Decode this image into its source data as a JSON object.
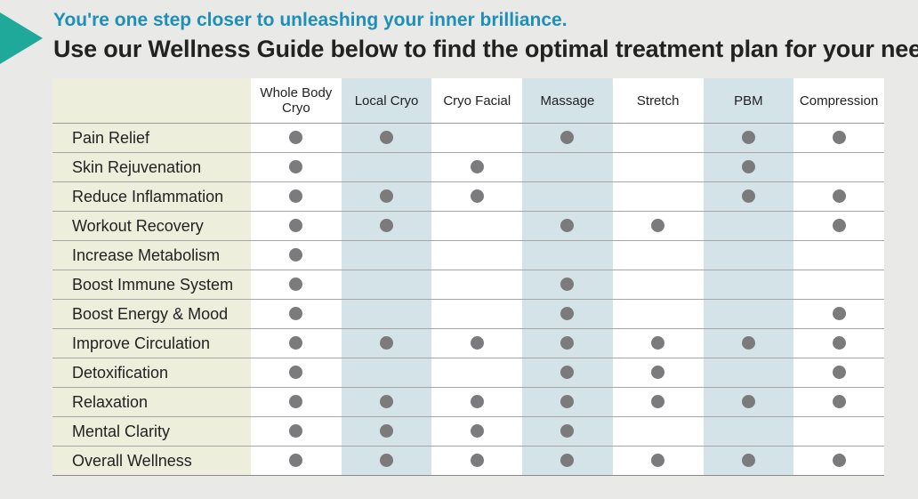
{
  "header": {
    "subtitle": "You're one step closer to unleashing your inner brilliance.",
    "title": "Use our Wellness Guide below to find the optimal treatment plan for your needs."
  },
  "colors": {
    "accent_arrow": "#1fa99a",
    "subtitle_text": "#1d8fb8",
    "label_column_bg": "#eeeedd",
    "alt_column_bg": "#d3e3e8",
    "dot": "#7b7b7d"
  },
  "table": {
    "columns": [
      {
        "label": "Whole Body Cryo",
        "shade": "white"
      },
      {
        "label": "Local Cryo",
        "shade": "blue"
      },
      {
        "label": "Cryo Facial",
        "shade": "white"
      },
      {
        "label": "Massage",
        "shade": "blue"
      },
      {
        "label": "Stretch",
        "shade": "white"
      },
      {
        "label": "PBM",
        "shade": "blue"
      },
      {
        "label": "Compression",
        "shade": "white"
      }
    ],
    "rows": [
      {
        "label": "Pain Relief",
        "marks": [
          true,
          true,
          false,
          true,
          false,
          true,
          true
        ]
      },
      {
        "label": "Skin Rejuvenation",
        "marks": [
          true,
          false,
          true,
          false,
          false,
          true,
          false
        ]
      },
      {
        "label": "Reduce Inflammation",
        "marks": [
          true,
          true,
          true,
          false,
          false,
          true,
          true
        ]
      },
      {
        "label": "Workout Recovery",
        "marks": [
          true,
          true,
          false,
          true,
          true,
          false,
          true
        ]
      },
      {
        "label": "Increase Metabolism",
        "marks": [
          true,
          false,
          false,
          false,
          false,
          false,
          false
        ]
      },
      {
        "label": "Boost Immune System",
        "marks": [
          true,
          false,
          false,
          true,
          false,
          false,
          false
        ]
      },
      {
        "label": "Boost Energy & Mood",
        "marks": [
          true,
          false,
          false,
          true,
          false,
          false,
          true
        ]
      },
      {
        "label": "Improve Circulation",
        "marks": [
          true,
          true,
          true,
          true,
          true,
          true,
          true
        ]
      },
      {
        "label": "Detoxification",
        "marks": [
          true,
          false,
          false,
          true,
          true,
          false,
          true
        ]
      },
      {
        "label": "Relaxation",
        "marks": [
          true,
          true,
          true,
          true,
          true,
          true,
          true
        ]
      },
      {
        "label": "Mental Clarity",
        "marks": [
          true,
          true,
          true,
          true,
          false,
          false,
          false
        ]
      },
      {
        "label": "Overall Wellness",
        "marks": [
          true,
          true,
          true,
          true,
          true,
          true,
          true
        ]
      }
    ]
  }
}
